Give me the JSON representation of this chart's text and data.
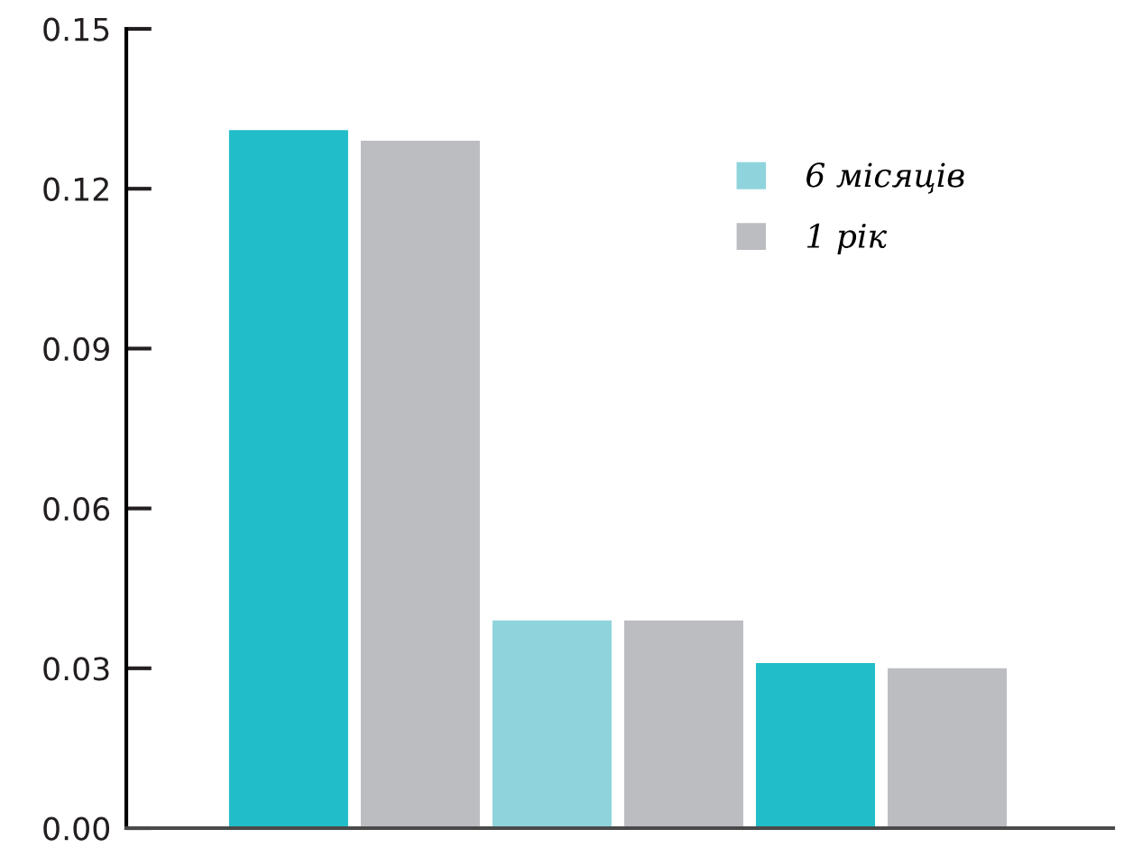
{
  "chart_data": {
    "type": "bar",
    "categories": [
      null,
      null,
      null
    ],
    "series": [
      {
        "name": "6 місяців",
        "color": "#8fd4dc",
        "colors": [
          "#21bdc8",
          "#8fd4dc",
          "#21bdc8"
        ],
        "values": [
          0.131,
          0.039,
          0.031
        ]
      },
      {
        "name": "1 рік",
        "color": "#bcbdc1",
        "values": [
          0.129,
          0.039,
          0.03
        ]
      }
    ],
    "ylim": [
      0,
      0.15
    ],
    "yticks": [
      {
        "value": 0,
        "label": "0.00"
      },
      0.03,
      0.06,
      0.09,
      0.12,
      0.15
    ],
    "grid": false,
    "legend": "top right"
  }
}
